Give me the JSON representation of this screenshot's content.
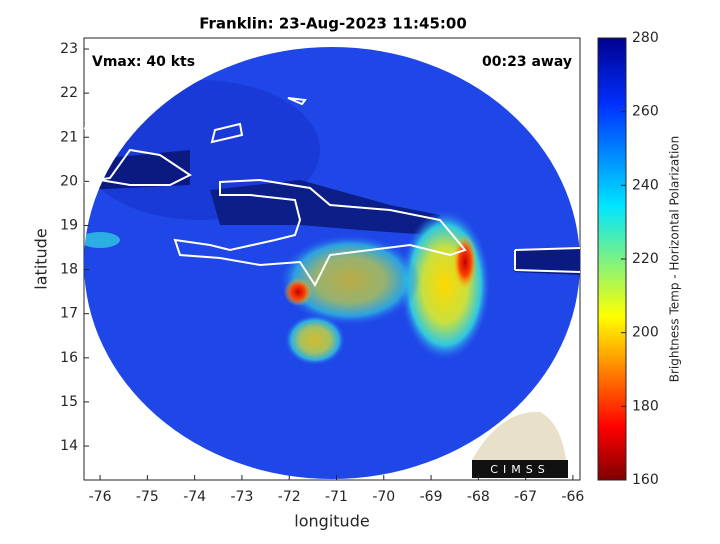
{
  "chart_data": {
    "type": "map",
    "title": "Franklin: 23-Aug-2023 11:45:00",
    "annotations": [
      "Vmax: 40 kts",
      "00:23 away"
    ],
    "x_label": "longitude",
    "y_label": "latitude",
    "xlim": [
      -76.34,
      -65.85
    ],
    "xticks": [
      -76,
      -75,
      -74,
      -73,
      -72,
      -71,
      -70,
      -69,
      -68,
      -67,
      -66
    ],
    "ylim": [
      13.23,
      23.25
    ],
    "yticks": [
      14,
      15,
      16,
      17,
      18,
      19,
      20,
      21,
      22,
      23
    ],
    "colorbar_label": "Brightness Temp - Horizontal Polarization",
    "clim": [
      160,
      280
    ],
    "colorbar_ticks": [
      160,
      180,
      200,
      220,
      240,
      260,
      280
    ],
    "logo": "CIMSS"
  }
}
